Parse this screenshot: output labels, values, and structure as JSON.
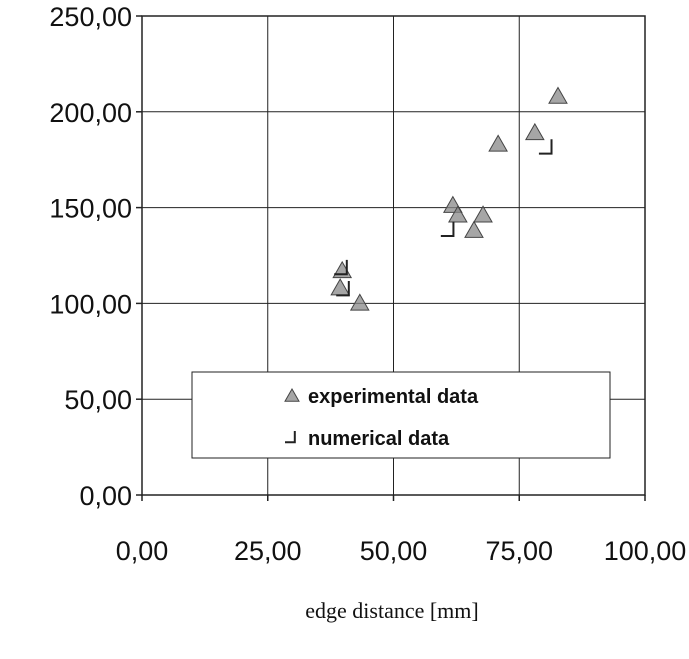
{
  "chart_data": {
    "type": "scatter",
    "x_label": "edge distance [mm]",
    "xlim": [
      0,
      100
    ],
    "ylim": [
      0,
      250
    ],
    "xticks": [
      {
        "value": 0,
        "label": "0,00"
      },
      {
        "value": 25,
        "label": "25,00"
      },
      {
        "value": 50,
        "label": "50,00"
      },
      {
        "value": 75,
        "label": "75,00"
      },
      {
        "value": 100,
        "label": "100,00"
      }
    ],
    "yticks": [
      {
        "value": 0,
        "label": "0,00"
      },
      {
        "value": 50,
        "label": "50,00"
      },
      {
        "value": 100,
        "label": "100,00"
      },
      {
        "value": 150,
        "label": "150,00"
      },
      {
        "value": 200,
        "label": "200,00"
      },
      {
        "value": 250,
        "label": "250,00"
      }
    ],
    "grid": true,
    "series": [
      {
        "name": "experimental data",
        "color": "#888888",
        "marker": "triangle",
        "x": [
          82.7,
          70.8,
          78.1,
          61.8,
          62.8,
          67.8,
          66.0,
          39.4,
          43.3,
          39.8
        ],
        "values": [
          208,
          183,
          189,
          151,
          146,
          146,
          138,
          108,
          100,
          117
        ]
      },
      {
        "name": "numerical data",
        "color": "#222222",
        "marker": "corner",
        "x": [
          80.7,
          61.2,
          40.0,
          40.4
        ],
        "values": [
          181,
          138,
          118,
          107
        ]
      }
    ]
  }
}
